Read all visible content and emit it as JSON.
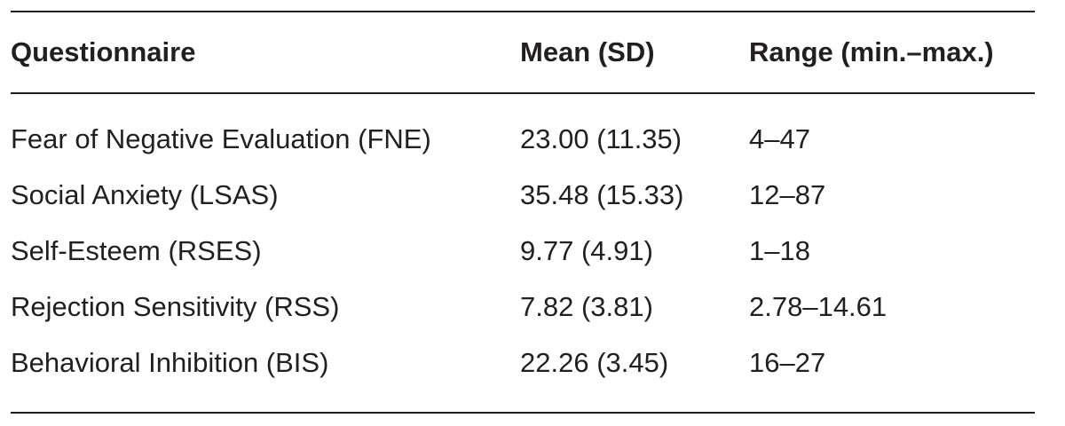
{
  "table": {
    "headers": {
      "questionnaire": "Questionnaire",
      "mean_sd": "Mean (SD)",
      "range": "Range (min.–max.)"
    },
    "rows": [
      {
        "questionnaire": "Fear of Negative Evaluation (FNE)",
        "mean_sd": "23.00 (11.35)",
        "range": "4–47"
      },
      {
        "questionnaire": "Social Anxiety (LSAS)",
        "mean_sd": "35.48 (15.33)",
        "range": "12–87"
      },
      {
        "questionnaire": "Self-Esteem (RSES)",
        "mean_sd": "9.77 (4.91)",
        "range": "1–18"
      },
      {
        "questionnaire": "Rejection Sensitivity (RSS)",
        "mean_sd": "7.82 (3.81)",
        "range": "2.78–14.61"
      },
      {
        "questionnaire": "Behavioral Inhibition (BIS)",
        "mean_sd": "22.26 (3.45)",
        "range": "16–27"
      }
    ]
  }
}
